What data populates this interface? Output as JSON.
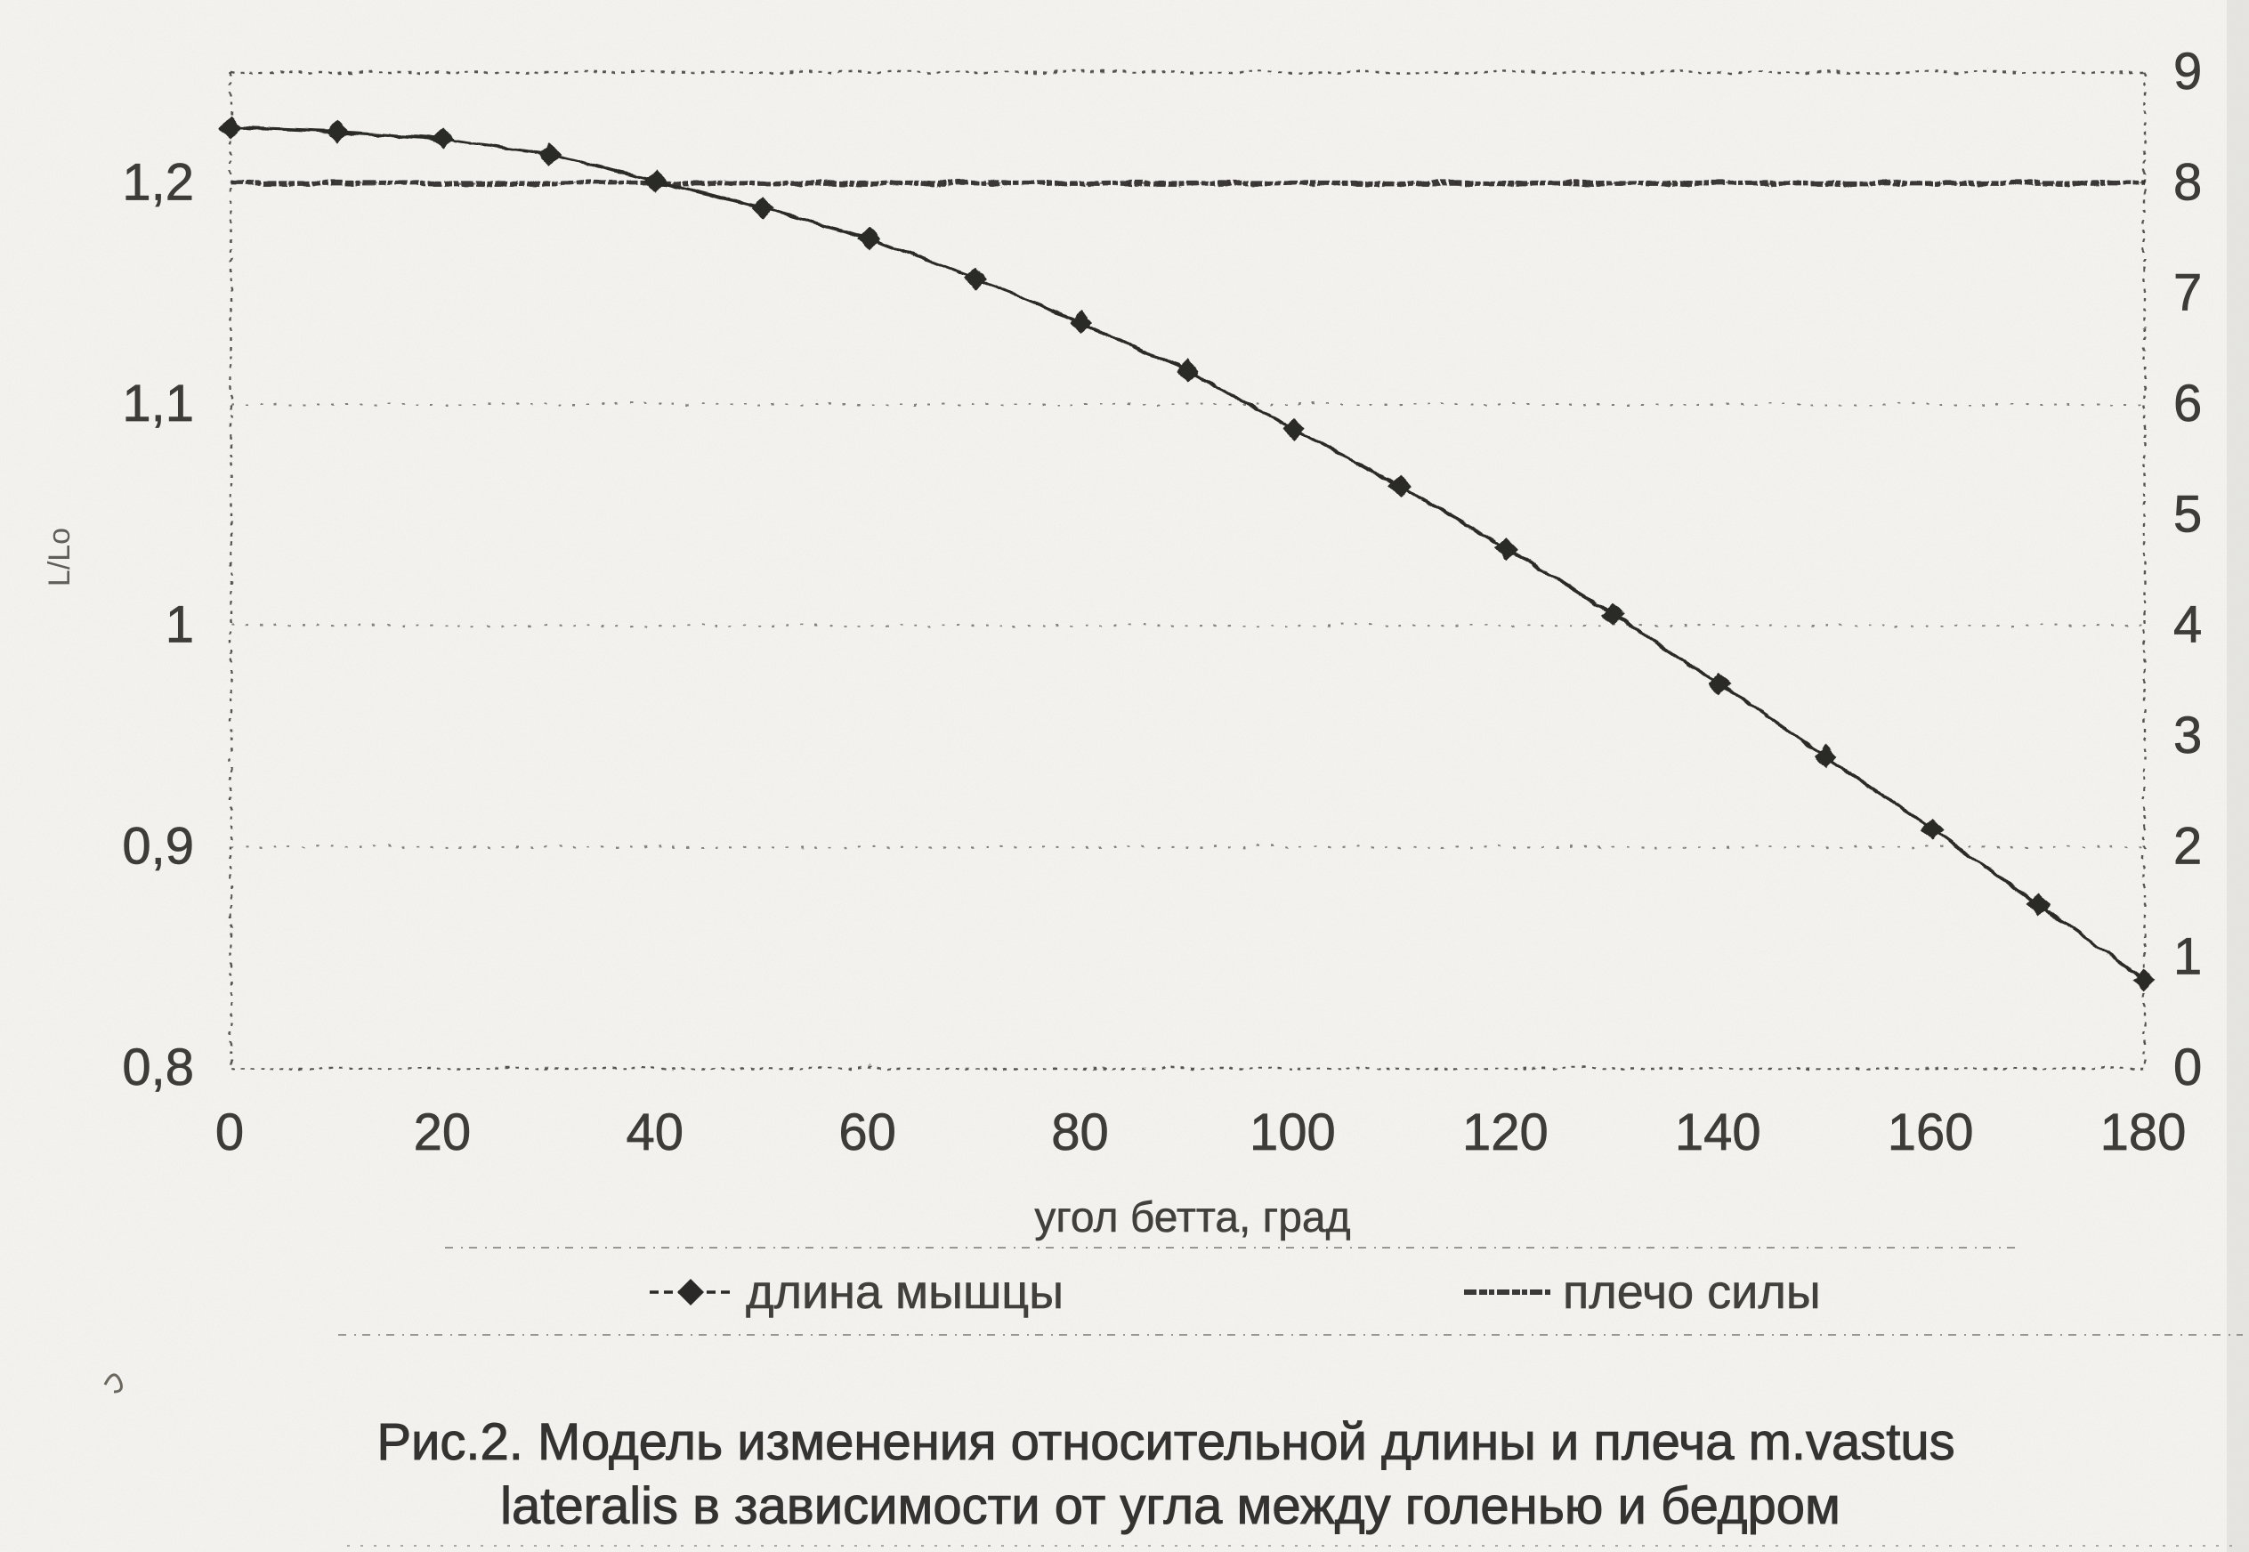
{
  "colors": {
    "paper": "#f5f4f1",
    "ink": "#2f2d2a",
    "grid": "#76726c"
  },
  "chart_data": {
    "type": "line",
    "title": "Рис.2. Модель изменения относительной длины  и плеча m.vastus lateralis в зависимости от угла между голенью и бедром",
    "xlabel": "угол бетта, град",
    "ylabel_left": "L/Lo",
    "x_range": [
      0,
      180
    ],
    "y_left_range": [
      0.8,
      1.25
    ],
    "y_right_range": [
      0,
      9
    ],
    "grid": "horizontal-dotted",
    "grid_values_left": [
      0.9,
      1.0,
      1.1,
      1.2
    ],
    "legend_position": "bottom",
    "x": [
      0,
      10,
      20,
      30,
      40,
      50,
      60,
      70,
      80,
      90,
      100,
      110,
      120,
      130,
      140,
      150,
      160,
      170,
      180
    ],
    "series": [
      {
        "name": "длина мышцы",
        "axis": "left",
        "marker": "diamond",
        "values": [
          1.225,
          1.223,
          1.22,
          1.213,
          1.201,
          1.189,
          1.175,
          1.157,
          1.137,
          1.115,
          1.089,
          1.063,
          1.035,
          1.005,
          0.974,
          0.941,
          0.908,
          0.874,
          0.84
        ]
      },
      {
        "name": "плечо силы",
        "axis": "right",
        "marker": "none",
        "values": [
          8,
          8,
          8,
          8,
          8,
          8,
          8,
          8,
          8,
          8,
          8,
          8,
          8,
          8,
          8,
          8,
          8,
          8,
          8
        ]
      }
    ],
    "x_ticks": [
      {
        "value": 0,
        "label": "0"
      },
      {
        "value": 20,
        "label": "20"
      },
      {
        "value": 40,
        "label": "40"
      },
      {
        "value": 60,
        "label": "60"
      },
      {
        "value": 80,
        "label": "80"
      },
      {
        "value": 100,
        "label": "100"
      },
      {
        "value": 120,
        "label": "120"
      },
      {
        "value": 140,
        "label": "140"
      },
      {
        "value": 160,
        "label": "160"
      },
      {
        "value": 180,
        "label": "180"
      }
    ],
    "y_left_ticks": [
      {
        "value": 1.2,
        "label": "1,2"
      },
      {
        "value": 1.1,
        "label": "1,1"
      },
      {
        "value": 1.0,
        "label": "1"
      },
      {
        "value": 0.9,
        "label": "0,9"
      },
      {
        "value": 0.8,
        "label": "0,8"
      }
    ],
    "y_right_ticks": [
      {
        "value": 9,
        "label": "9"
      },
      {
        "value": 8,
        "label": "8"
      },
      {
        "value": 7,
        "label": "7"
      },
      {
        "value": 6,
        "label": "6"
      },
      {
        "value": 5,
        "label": "5"
      },
      {
        "value": 4,
        "label": "4"
      },
      {
        "value": 3,
        "label": "3"
      },
      {
        "value": 2,
        "label": "2"
      },
      {
        "value": 1,
        "label": "1"
      },
      {
        "value": 0,
        "label": "0"
      }
    ]
  },
  "legend": {
    "item1": "длина мышцы",
    "item2": "плечо силы"
  },
  "caption": {
    "line1": "Рис.2. Модель изменения относительной длины  и плеча m.vastus",
    "line2": "lateralis в зависимости от угла между голенью и бедром"
  }
}
